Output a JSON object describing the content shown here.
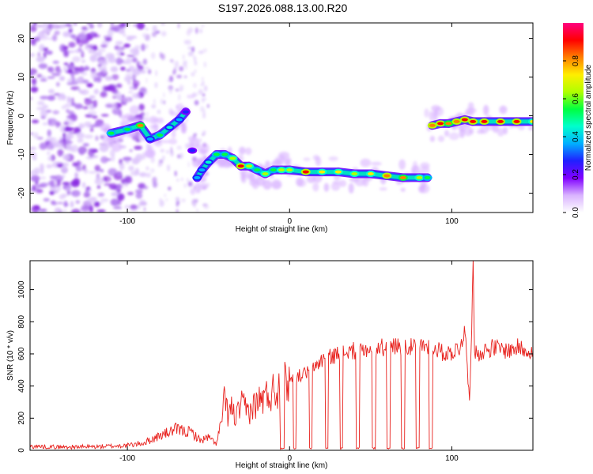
{
  "page": {
    "title": "S197.2026.088.13.00.R20"
  },
  "chart_data": [
    {
      "type": "heatmap",
      "title": "S197.2026.088.13.00.R20",
      "xlabel": "Height of straight line (km)",
      "ylabel": "Frequency (Hz)",
      "xlim": [
        -160,
        150
      ],
      "ylim": [
        -25,
        24
      ],
      "x_ticks": [
        -100,
        0,
        100
      ],
      "x_tick_labels": [
        "-100",
        "0",
        "100"
      ],
      "y_ticks": [
        -20,
        -10,
        0,
        10,
        20
      ],
      "y_tick_labels": [
        "-20",
        "-10",
        "0",
        "10",
        "20"
      ],
      "colorbar": {
        "label": "Normalized spectral amplitude",
        "range": [
          0.0,
          1.0
        ],
        "ticks": [
          0.0,
          0.2,
          0.4,
          0.6,
          0.8
        ],
        "tick_labels": [
          "0.0",
          "0.2",
          "0.4",
          "0.6",
          "0.8"
        ],
        "colormap": [
          "#ffffff",
          "#d9b3ff",
          "#8000ff",
          "#2020ff",
          "#00b0ff",
          "#00ffcc",
          "#00ff40",
          "#b0ff00",
          "#ffee00",
          "#ff8000",
          "#ff0000",
          "#ff0080"
        ]
      },
      "ridge": {
        "x": [
          -110,
          -100,
          -92,
          -86,
          -80,
          -74,
          -68,
          -64,
          -60,
          -57,
          -54,
          -50,
          -45,
          -40,
          -35,
          -30,
          -25,
          -20,
          -15,
          -10,
          -5,
          0,
          10,
          20,
          30,
          40,
          50,
          60,
          70,
          80,
          85,
          88,
          93,
          98,
          103,
          108,
          113,
          120,
          130,
          140,
          150
        ],
        "y": [
          -4.5,
          -3.5,
          -2.5,
          -6,
          -5,
          -3,
          -1,
          1,
          -9,
          -16,
          -14,
          -12,
          -10,
          -10,
          -11,
          -13,
          -13,
          -14,
          -15,
          -14,
          -14,
          -14,
          -14.5,
          -14.5,
          -14.5,
          -15,
          -15,
          -15.5,
          -16,
          -16,
          -16,
          -2.5,
          -2,
          -2,
          -1.5,
          -1,
          -1.5,
          -1.5,
          -1.5,
          -1.5,
          -1.5
        ],
        "amplitude": [
          0.5,
          0.5,
          0.8,
          0.4,
          0.5,
          0.45,
          0.35,
          0.3,
          0.3,
          0.4,
          0.35,
          0.45,
          0.5,
          0.5,
          0.6,
          0.95,
          0.6,
          0.5,
          0.6,
          0.55,
          0.6,
          0.65,
          0.9,
          0.7,
          0.7,
          0.6,
          0.7,
          0.85,
          0.8,
          0.6,
          0.5,
          0.85,
          0.9,
          0.8,
          0.85,
          0.95,
          0.9,
          0.95,
          0.95,
          0.95,
          0.7
        ]
      }
    },
    {
      "type": "line",
      "xlabel": "Height of straight line (km)",
      "ylabel": "SNR (10 * v/v)",
      "xlim": [
        -160,
        150
      ],
      "ylim": [
        0,
        1180
      ],
      "x_ticks": [
        -100,
        0,
        100
      ],
      "x_tick_labels": [
        "-100",
        "0",
        "100"
      ],
      "y_ticks": [
        0,
        200,
        400,
        600,
        800,
        1000
      ],
      "y_tick_labels": [
        "0",
        "200",
        "400",
        "600",
        "800",
        "1000"
      ],
      "series_color": "#e8211d",
      "x": [
        -160,
        -140,
        -120,
        -100,
        -90,
        -80,
        -70,
        -60,
        -55,
        -50,
        -45,
        -42,
        -40,
        -38,
        -36,
        -33,
        -30,
        -25,
        -20,
        -15,
        -10,
        -5,
        0,
        5,
        10,
        15,
        20,
        25,
        30,
        35,
        40,
        45,
        50,
        55,
        60,
        65,
        70,
        75,
        80,
        85,
        90,
        95,
        100,
        105,
        108,
        110,
        111,
        112,
        113,
        114,
        115,
        120,
        125,
        130,
        135,
        140,
        145,
        150
      ],
      "values": [
        25,
        20,
        22,
        30,
        45,
        90,
        130,
        110,
        60,
        80,
        40,
        180,
        320,
        220,
        260,
        200,
        280,
        240,
        300,
        330,
        370,
        400,
        440,
        460,
        480,
        520,
        560,
        580,
        600,
        610,
        620,
        630,
        630,
        640,
        640,
        650,
        650,
        640,
        660,
        650,
        640,
        600,
        610,
        640,
        760,
        430,
        330,
        700,
        1170,
        640,
        600,
        620,
        640,
        630,
        620,
        640,
        630,
        620
      ],
      "dropouts": [
        [
          -6,
          -3
        ],
        [
          2,
          4
        ],
        [
          12,
          14
        ],
        [
          22,
          24
        ],
        [
          31,
          33
        ],
        [
          41,
          43
        ],
        [
          51,
          53
        ],
        [
          60,
          62
        ],
        [
          69,
          71
        ],
        [
          78,
          80
        ],
        [
          86,
          88
        ]
      ]
    }
  ]
}
